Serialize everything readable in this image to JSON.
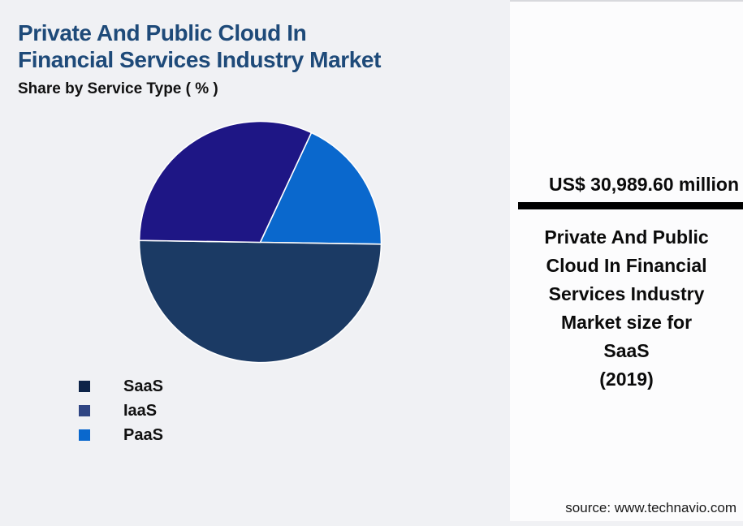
{
  "page": {
    "background": "#f0f1f4",
    "card_background": "#fcfcfd"
  },
  "header": {
    "title": "Private And Public Cloud In\nFinancial Services Industry Market",
    "title_color": "#1e4a79",
    "subtitle": "Share by Service Type ( % )"
  },
  "chart_data": {
    "type": "pie",
    "title": "Private And Public Cloud In Financial Services Industry Market",
    "subtitle": "Share by Service Type ( % )",
    "unit": "percent",
    "slices": [
      {
        "label": "SaaS",
        "value": 50.0,
        "color": "#1b3a64",
        "legend_color": "#0d2348"
      },
      {
        "label": "IaaS",
        "value": 31.7,
        "color": "#1e1685",
        "legend_color": "#2f4583"
      },
      {
        "label": "PaaS",
        "value": 18.3,
        "color": "#0a68cd",
        "legend_color": "#0a68cd"
      }
    ],
    "start_angle_deg": 25,
    "draw_order": [
      "PaaS",
      "SaaS",
      "IaaS"
    ],
    "slice_border_color": "#ffffff",
    "legend_position": "bottom-left",
    "legend_labels": [
      "SaaS",
      "IaaS",
      "PaaS"
    ]
  },
  "panel": {
    "value": "US$ 30,989.60 million",
    "description": "Private And Public\nCloud In Financial\nServices Industry\nMarket size for\nSaaS\n(2019)",
    "source": "source: www.technavio.com",
    "divider_color": "#000000"
  }
}
